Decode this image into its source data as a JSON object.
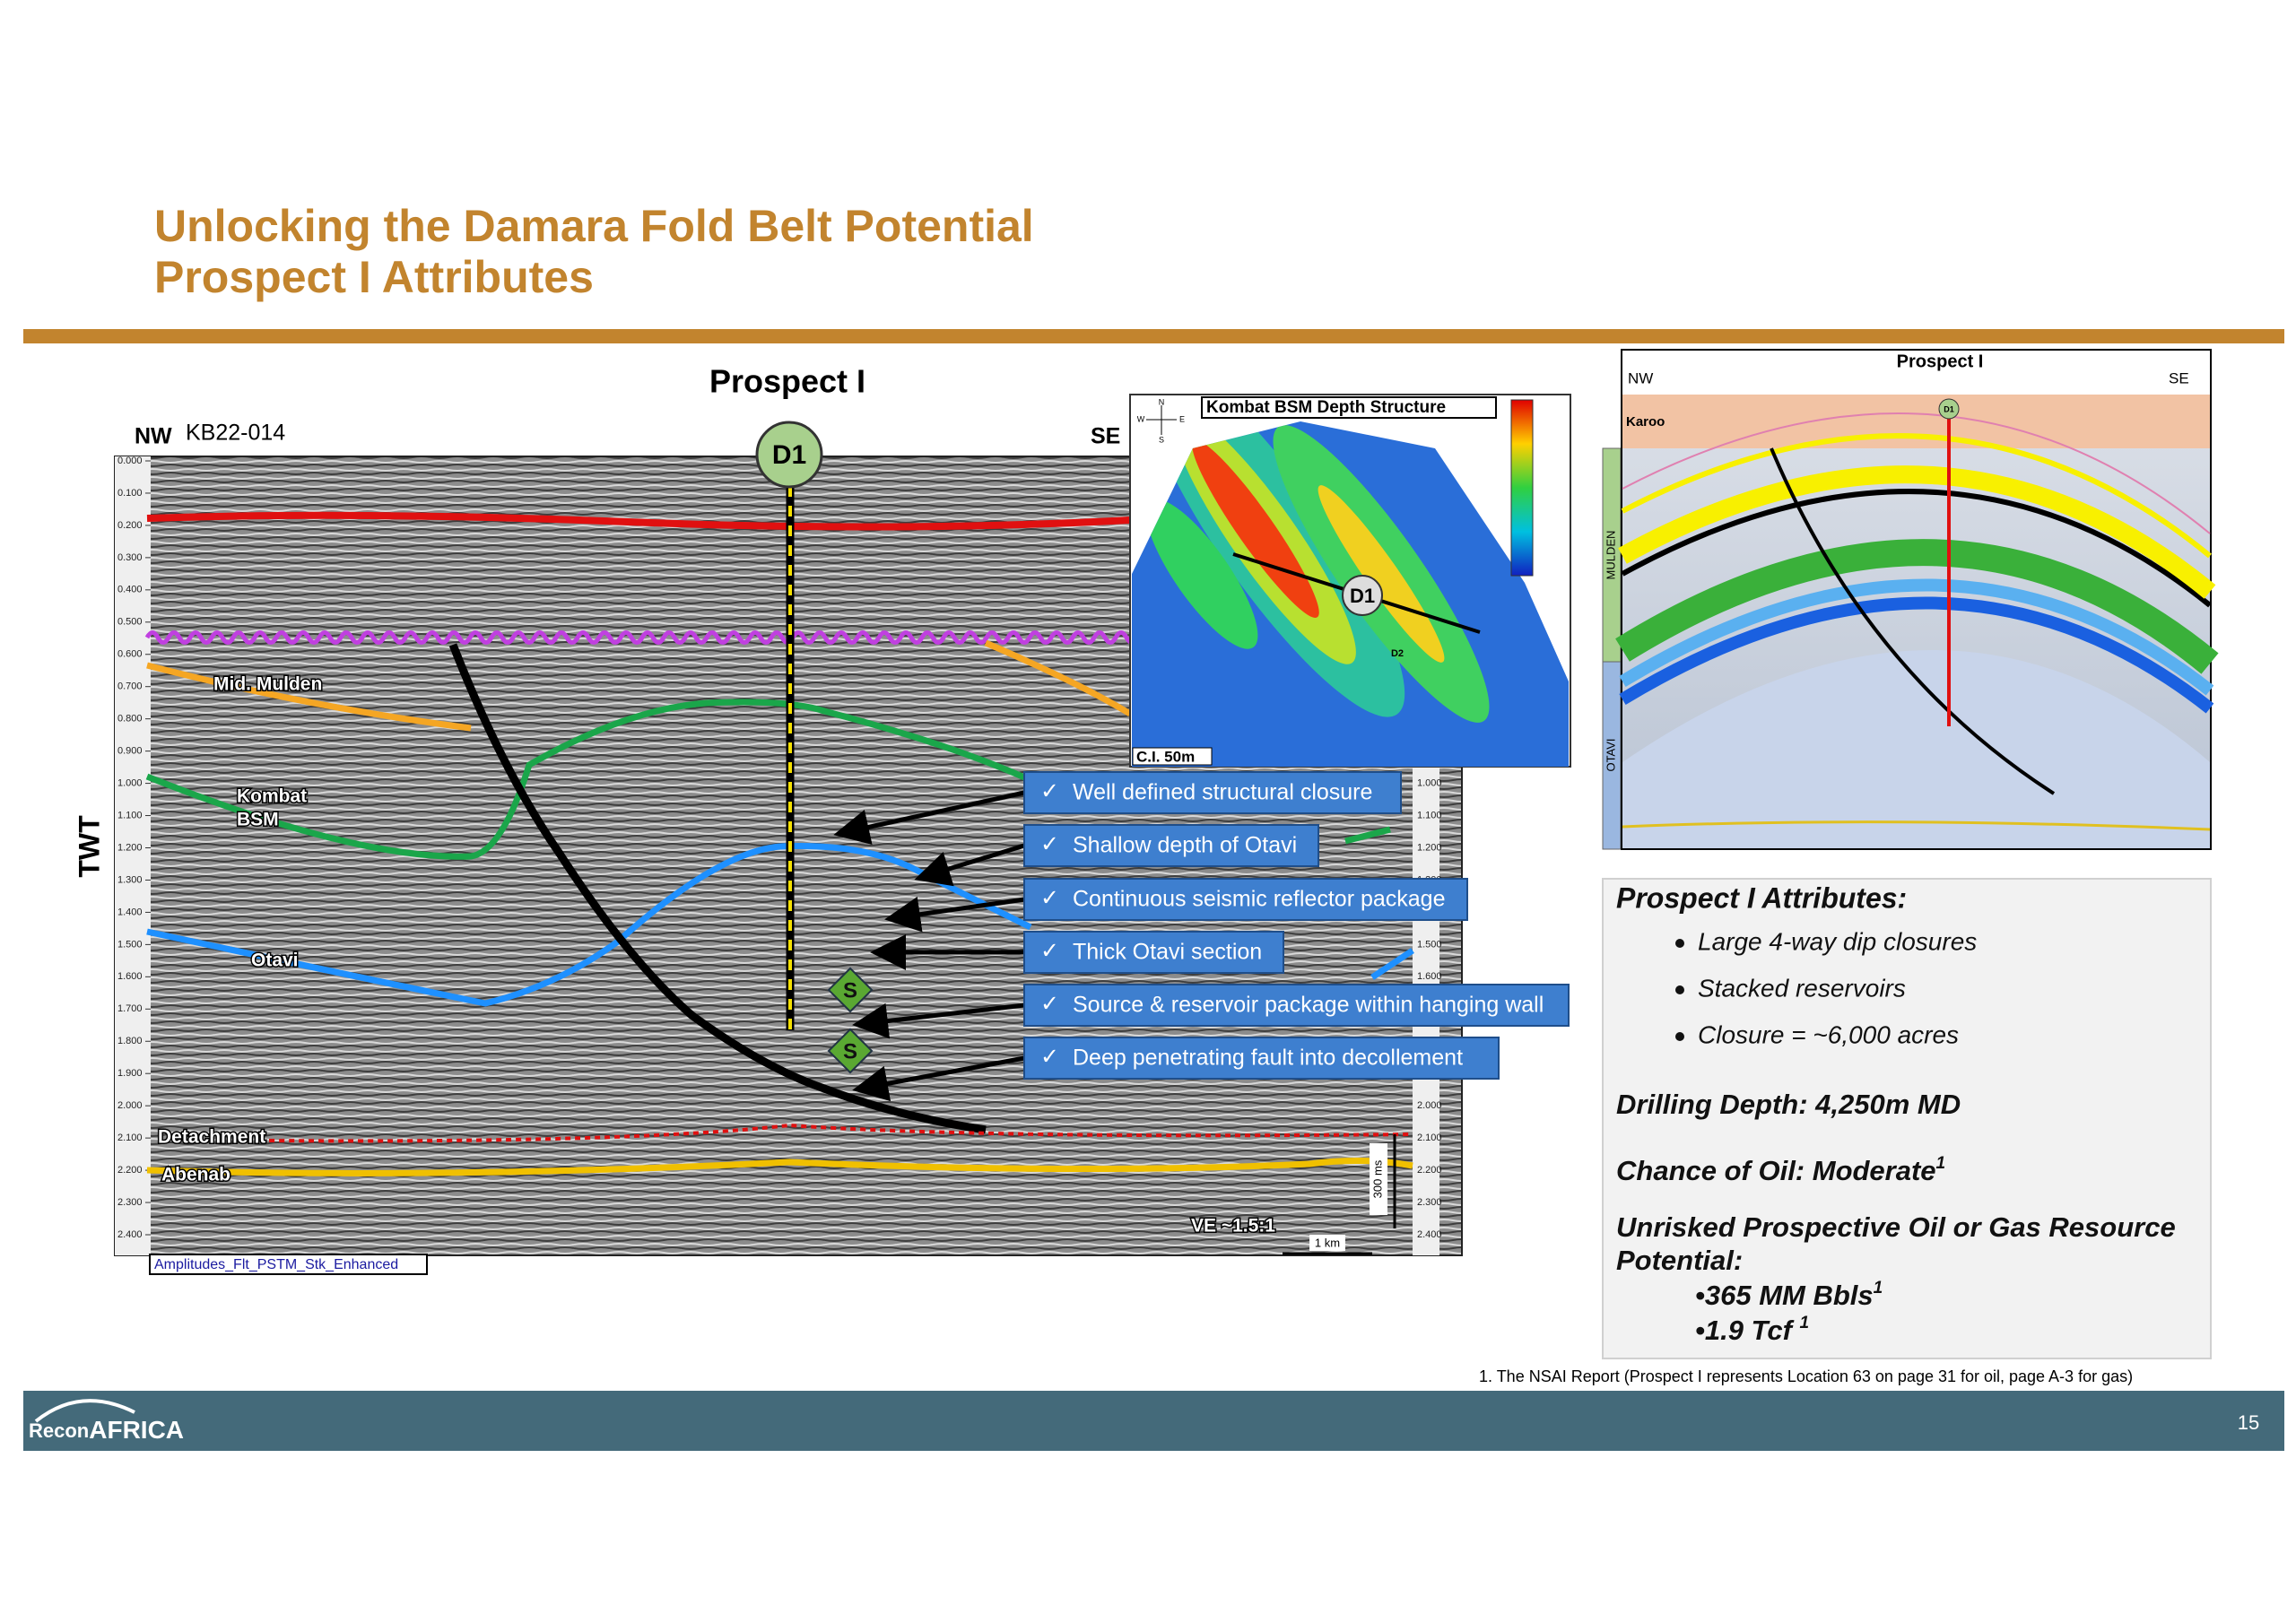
{
  "header": {
    "title_line1": "Unlocking the Damara Fold Belt Potential",
    "title_line2": "Prospect I Attributes"
  },
  "seismic": {
    "title": "Prospect I",
    "left_direction": "NW",
    "line_name": "KB22-014",
    "right_direction": "SE",
    "axis_label": "TWT",
    "time_ticks": [
      "0.000",
      "0.100",
      "0.200",
      "0.300",
      "0.400",
      "0.500",
      "0.600",
      "0.700",
      "0.800",
      "0.900",
      "1.000",
      "1.100",
      "1.200",
      "1.300",
      "1.400",
      "1.500",
      "1.600",
      "1.700",
      "1.800",
      "1.900",
      "2.000",
      "2.100",
      "2.200",
      "2.300",
      "2.400"
    ],
    "well": "D1",
    "horizons": [
      "Mid. Mulden",
      "Kombat",
      "BSM",
      "Otavi",
      "Detachment",
      "Abenab"
    ],
    "source_marker": "S",
    "vertical_exaggeration": "VE ~1.5:1",
    "scale_bar": "1 km",
    "time_scale": "300 ms",
    "volume": "Amplitudes_Flt_PSTM_Stk_Enhanced",
    "checklist": [
      "Well defined structural closure",
      "Shallow depth of Otavi",
      "Continuous seismic reflector package",
      "Thick Otavi section",
      "Source & reservoir package within hanging wall",
      "Deep penetrating fault into decollement"
    ],
    "check_mark": "✓"
  },
  "map": {
    "title": "Kombat BSM Depth Structure",
    "contour_interval": "C.I. 50m",
    "wells": [
      "D1",
      "D2"
    ],
    "compass": [
      "N",
      "S",
      "E",
      "W"
    ]
  },
  "cross_section": {
    "title": "Prospect I",
    "left_direction": "NW",
    "right_direction": "SE",
    "karoo": "Karoo",
    "mulden": "MULDEN",
    "otavi": "OTAVI",
    "well": "D1"
  },
  "attributes": {
    "title": "Prospect I Attributes:",
    "bullets": [
      "Large 4-way dip closures",
      "Stacked reservoirs",
      "Closure = ~6,000 acres"
    ],
    "drilling_depth": "Drilling Depth: 4,250m MD",
    "chance_of_oil": "Chance of Oil: Moderate",
    "chance_note": "1",
    "resource_line1": "Unrisked Prospective Oil or Gas Resource",
    "resource_line2": "Potential:",
    "oil": "•365 MM Bbls",
    "oil_note": "1",
    "gas": "•1.9 Tcf ",
    "gas_note": "1"
  },
  "footnote": "1. The NSAI Report (Prospect I represents Location 63 on page 31 for oil, page A-3 for gas)",
  "footer": {
    "logo_left": "Recon",
    "logo_right": "AFRICA",
    "page_number": "15"
  }
}
